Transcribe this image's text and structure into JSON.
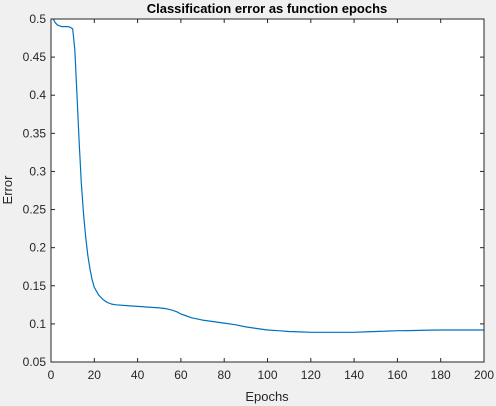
{
  "chart_data": {
    "type": "line",
    "title": "Classification error as function epochs",
    "xlabel": "Epochs",
    "ylabel": "Error",
    "xlim": [
      0,
      200
    ],
    "ylim": [
      0.05,
      0.5
    ],
    "xticks": [
      "0",
      "20",
      "40",
      "60",
      "80",
      "100",
      "120",
      "140",
      "160",
      "180",
      "200"
    ],
    "yticks": [
      "0.05",
      "0.1",
      "0.15",
      "0.2",
      "0.25",
      "0.3",
      "0.35",
      "0.4",
      "0.45",
      "0.5"
    ],
    "grid": false,
    "line_color": "#0072bd",
    "series": [
      {
        "x": [
          1,
          2,
          3,
          4,
          5,
          6,
          7,
          8,
          9,
          10,
          11,
          12,
          13,
          14,
          15,
          16,
          17,
          18,
          19,
          20,
          22,
          24,
          26,
          28,
          30,
          35,
          40,
          45,
          50,
          53,
          56,
          58,
          60,
          62,
          65,
          70,
          75,
          80,
          85,
          90,
          95,
          100,
          105,
          110,
          115,
          120,
          125,
          130,
          135,
          140,
          145,
          150,
          155,
          160,
          165,
          170,
          175,
          180,
          185,
          190,
          195,
          200
        ],
        "y": [
          0.5,
          0.495,
          0.492,
          0.491,
          0.49,
          0.49,
          0.49,
          0.49,
          0.489,
          0.487,
          0.46,
          0.4,
          0.34,
          0.285,
          0.245,
          0.215,
          0.19,
          0.172,
          0.158,
          0.148,
          0.138,
          0.132,
          0.128,
          0.126,
          0.125,
          0.124,
          0.123,
          0.122,
          0.121,
          0.12,
          0.118,
          0.116,
          0.113,
          0.111,
          0.108,
          0.105,
          0.103,
          0.101,
          0.099,
          0.096,
          0.094,
          0.092,
          0.091,
          0.09,
          0.0895,
          0.089,
          0.089,
          0.089,
          0.089,
          0.089,
          0.0895,
          0.09,
          0.0905,
          0.091,
          0.0912,
          0.0915,
          0.0918,
          0.092,
          0.092,
          0.092,
          0.092,
          0.092
        ]
      }
    ]
  }
}
